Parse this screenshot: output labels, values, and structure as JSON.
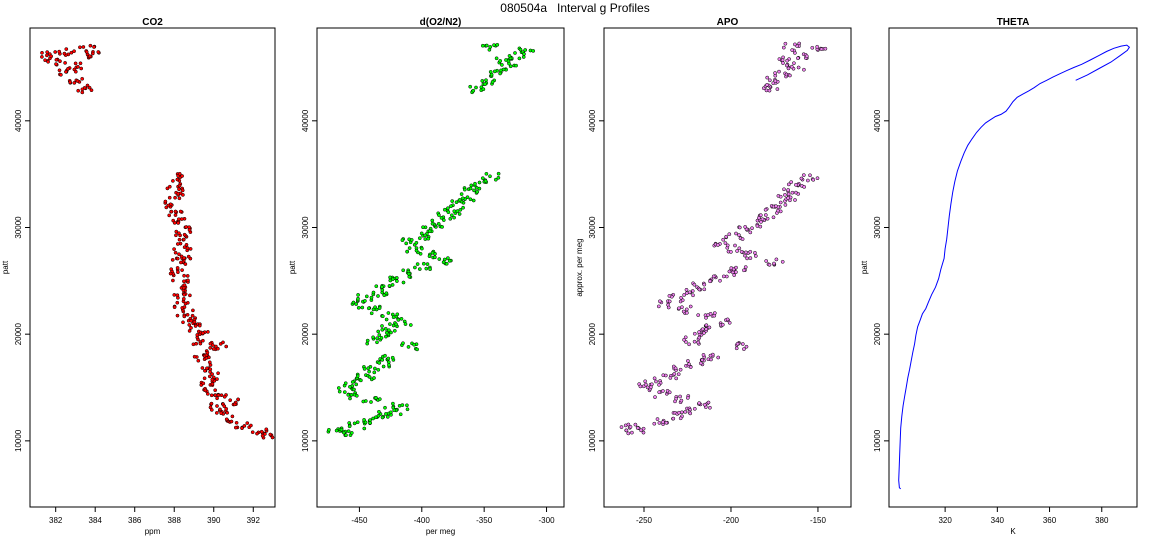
{
  "figure": {
    "title": "080504a   Interval g Profiles"
  },
  "chart_data": [
    {
      "type": "scatter",
      "title": "CO2",
      "xlabel": "ppm",
      "ylabel": "patt",
      "xlim": [
        380.7,
        393.1
      ],
      "ylim": [
        3800,
        48700
      ],
      "xticks": [
        382,
        384,
        386,
        388,
        390,
        392
      ],
      "yticks": [
        10000,
        20000,
        30000,
        40000
      ],
      "marker_color": "#ff0000",
      "grid": false,
      "profile": [
        [
          392.7,
          10500
        ],
        [
          392.3,
          10800
        ],
        [
          391.5,
          11400
        ],
        [
          390.8,
          12000
        ],
        [
          390.3,
          12700
        ],
        [
          390.2,
          13200
        ],
        [
          390.9,
          13600
        ],
        [
          390.5,
          14000
        ],
        [
          389.9,
          14600
        ],
        [
          389.6,
          15300
        ],
        [
          389.8,
          16000
        ],
        [
          389.6,
          16800
        ],
        [
          389.4,
          17700
        ],
        [
          389.9,
          18300
        ],
        [
          390.2,
          18900
        ],
        [
          389.4,
          19400
        ],
        [
          389.3,
          20000
        ],
        [
          388.9,
          20600
        ],
        [
          388.7,
          21300
        ],
        [
          388.6,
          22000
        ],
        [
          388.3,
          22800
        ],
        [
          388.4,
          23600
        ],
        [
          388.2,
          24400
        ],
        [
          388.3,
          25200
        ],
        [
          388.2,
          26000
        ],
        [
          388.3,
          26800
        ],
        [
          388.5,
          27400
        ],
        [
          388.4,
          28200
        ],
        [
          388.3,
          29000
        ],
        [
          388.5,
          29800
        ],
        [
          388.2,
          30600
        ],
        [
          388.0,
          31400
        ],
        [
          387.9,
          32200
        ],
        [
          388.1,
          33000
        ],
        [
          388.0,
          33800
        ],
        [
          388.1,
          34700
        ],
        [
          383.4,
          43000
        ],
        [
          383.1,
          43700
        ],
        [
          382.6,
          44500
        ],
        [
          382.9,
          45200
        ],
        [
          381.8,
          45600
        ],
        [
          381.6,
          46100
        ],
        [
          382.5,
          46500
        ],
        [
          383.6,
          46800
        ],
        [
          384.0,
          46200
        ]
      ]
    },
    {
      "type": "scatter",
      "title": "d(O2/N2)",
      "xlabel": "per meg",
      "ylabel": "patt",
      "xlim": [
        -484,
        -286
      ],
      "ylim": [
        3800,
        48700
      ],
      "xticks": [
        -450,
        -400,
        -350,
        -300
      ],
      "yticks": [
        10000,
        20000,
        30000,
        40000
      ],
      "marker_color": "#00ff00",
      "grid": false,
      "profile": [
        [
          -462,
          10600
        ],
        [
          -468,
          11000
        ],
        [
          -452,
          11500
        ],
        [
          -440,
          12000
        ],
        [
          -430,
          12400
        ],
        [
          -423,
          12800
        ],
        [
          -418,
          13200
        ],
        [
          -440,
          13800
        ],
        [
          -452,
          14300
        ],
        [
          -460,
          14900
        ],
        [
          -455,
          15500
        ],
        [
          -445,
          16100
        ],
        [
          -440,
          16700
        ],
        [
          -432,
          17300
        ],
        [
          -428,
          17900
        ],
        [
          -410,
          18900
        ],
        [
          -438,
          19400
        ],
        [
          -430,
          20000
        ],
        [
          -425,
          20600
        ],
        [
          -415,
          21100
        ],
        [
          -425,
          21700
        ],
        [
          -440,
          22300
        ],
        [
          -450,
          22800
        ],
        [
          -445,
          23400
        ],
        [
          -435,
          23900
        ],
        [
          -430,
          24500
        ],
        [
          -420,
          25100
        ],
        [
          -410,
          25700
        ],
        [
          -400,
          26300
        ],
        [
          -380,
          26800
        ],
        [
          -395,
          27400
        ],
        [
          -405,
          28000
        ],
        [
          -410,
          28600
        ],
        [
          -400,
          29200
        ],
        [
          -395,
          29800
        ],
        [
          -385,
          30400
        ],
        [
          -380,
          31000
        ],
        [
          -375,
          31600
        ],
        [
          -370,
          32200
        ],
        [
          -365,
          32800
        ],
        [
          -360,
          33400
        ],
        [
          -355,
          34000
        ],
        [
          -345,
          34700
        ],
        [
          -355,
          43000
        ],
        [
          -345,
          43700
        ],
        [
          -340,
          44400
        ],
        [
          -330,
          45000
        ],
        [
          -335,
          45600
        ],
        [
          -325,
          46100
        ],
        [
          -315,
          46600
        ],
        [
          -345,
          46900
        ]
      ]
    },
    {
      "type": "scatter",
      "title": "APO",
      "xlabel": "",
      "ylabel": "approx. per meg",
      "xlim": [
        -273,
        -131
      ],
      "ylim": [
        3800,
        48700
      ],
      "xticks": [
        -250,
        -200,
        -150
      ],
      "yticks": [
        10000,
        20000,
        30000,
        40000
      ],
      "marker_color": "#ee82ee",
      "grid": false,
      "profile": [
        [
          -255,
          10900
        ],
        [
          -258,
          11300
        ],
        [
          -240,
          11800
        ],
        [
          -232,
          12300
        ],
        [
          -225,
          12800
        ],
        [
          -215,
          13300
        ],
        [
          -228,
          13900
        ],
        [
          -240,
          14400
        ],
        [
          -250,
          15000
        ],
        [
          -245,
          15600
        ],
        [
          -235,
          16100
        ],
        [
          -228,
          16700
        ],
        [
          -220,
          17300
        ],
        [
          -212,
          17900
        ],
        [
          -195,
          18900
        ],
        [
          -222,
          19400
        ],
        [
          -218,
          20000
        ],
        [
          -212,
          20600
        ],
        [
          -205,
          21100
        ],
        [
          -214,
          21700
        ],
        [
          -228,
          22300
        ],
        [
          -238,
          22800
        ],
        [
          -232,
          23400
        ],
        [
          -222,
          23900
        ],
        [
          -218,
          24500
        ],
        [
          -210,
          25100
        ],
        [
          -202,
          25700
        ],
        [
          -195,
          26300
        ],
        [
          -175,
          26800
        ],
        [
          -190,
          27400
        ],
        [
          -198,
          28000
        ],
        [
          -205,
          28600
        ],
        [
          -198,
          29200
        ],
        [
          -192,
          29800
        ],
        [
          -184,
          30400
        ],
        [
          -180,
          31000
        ],
        [
          -176,
          31600
        ],
        [
          -172,
          32200
        ],
        [
          -168,
          32800
        ],
        [
          -165,
          33400
        ],
        [
          -162,
          34000
        ],
        [
          -155,
          34700
        ],
        [
          -178,
          43000
        ],
        [
          -175,
          43700
        ],
        [
          -170,
          44400
        ],
        [
          -163,
          45000
        ],
        [
          -168,
          45600
        ],
        [
          -160,
          46100
        ],
        [
          -150,
          46600
        ],
        [
          -165,
          46900
        ]
      ]
    },
    {
      "type": "line",
      "title": "THETA",
      "xlabel": "K",
      "ylabel": "patt",
      "xlim": [
        298.5,
        393.5
      ],
      "ylim": [
        3800,
        48700
      ],
      "xticks": [
        320,
        340,
        360,
        380
      ],
      "yticks": [
        10000,
        20000,
        30000,
        40000
      ],
      "line_color": "#0000ff",
      "grid": false,
      "x": [
        303.0,
        302.5,
        302.2,
        302.4,
        302.6,
        302.8,
        303.0,
        303.4,
        303.9,
        304.5,
        305.1,
        305.7,
        306.4,
        307.0,
        307.6,
        308.3,
        308.8,
        309.5,
        310.4,
        311.3,
        312.6,
        313.6,
        314.8,
        316.3,
        317.5,
        318.4,
        319.6,
        320.0,
        320.6,
        321.1,
        321.6,
        322.2,
        322.9,
        323.7,
        324.7,
        326.0,
        327.3,
        328.7,
        330.3,
        332.0,
        333.8,
        335.5,
        337.4,
        339.3,
        341.4,
        343.3,
        344.6,
        346.0,
        347.6,
        349.8,
        352.0,
        354.1,
        356.4,
        358.9,
        361.3,
        363.8,
        366.5,
        369.3,
        372.3,
        375.6,
        378.8,
        381.8,
        384.6,
        387.4,
        389.6,
        390.6,
        389.8,
        387.0,
        383.5,
        379.0,
        374.5,
        370.0
      ],
      "y": [
        5500,
        5600,
        6300,
        7500,
        8800,
        10000,
        11200,
        12300,
        13300,
        14200,
        15000,
        15900,
        16700,
        17500,
        18300,
        19100,
        19900,
        20700,
        21300,
        21900,
        22400,
        23000,
        23700,
        24400,
        25200,
        26100,
        27100,
        28000,
        28900,
        30000,
        31100,
        32200,
        33300,
        34300,
        35300,
        36200,
        37000,
        37700,
        38300,
        38900,
        39400,
        39800,
        40100,
        40400,
        40600,
        40900,
        41300,
        41800,
        42200,
        42500,
        42800,
        43100,
        43500,
        43800,
        44100,
        44400,
        44700,
        45000,
        45300,
        45700,
        46100,
        46500,
        46800,
        47000,
        47100,
        46900,
        46600,
        46100,
        45500,
        44900,
        44300,
        43800
      ]
    }
  ]
}
